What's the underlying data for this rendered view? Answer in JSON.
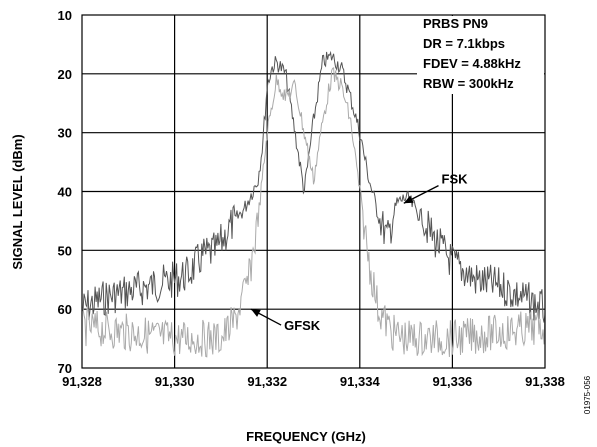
{
  "chart_data": {
    "type": "line",
    "title": "",
    "xlabel": "FREQUENCY (GHz)",
    "ylabel": "SIGNAL LEVEL (dBm)",
    "xlim": [
      91.328,
      91.338
    ],
    "ylim": [
      10,
      70
    ],
    "y_inverted": true,
    "grid": true,
    "x_ticks": [
      91.328,
      91.33,
      91.332,
      91.334,
      91.336,
      91.338
    ],
    "x_tick_labels": [
      "91,328",
      "91,330",
      "91,332",
      "91,334",
      "91,336",
      "91,338"
    ],
    "y_ticks": [
      10,
      20,
      30,
      40,
      50,
      60,
      70
    ],
    "y_tick_labels": [
      "10",
      "20",
      "30",
      "40",
      "50",
      "60",
      "70"
    ],
    "settings_box": [
      "PRBS PN9",
      "DR = 7.1kbps",
      "FDEV = 4.88kHz",
      "RBW = 300kHz"
    ],
    "series": [
      {
        "name": "FSK",
        "color": "#555555",
        "x": [
          91.328,
          91.3285,
          91.329,
          91.3295,
          91.33,
          91.3303,
          91.3306,
          91.3309,
          91.3312,
          91.3315,
          91.3318,
          91.3319,
          91.332,
          91.3321,
          91.3322,
          91.3324,
          91.3326,
          91.3328,
          91.333,
          91.3332,
          91.3334,
          91.3336,
          91.3338,
          91.334,
          91.3342,
          91.3344,
          91.3346,
          91.3348,
          91.335,
          91.3353,
          91.3356,
          91.336,
          91.3365,
          91.337,
          91.3375,
          91.338
        ],
        "values": [
          60,
          58,
          57,
          56,
          55,
          54,
          51,
          50,
          46,
          43,
          38,
          32,
          22,
          19,
          18,
          20,
          30,
          40,
          28,
          18,
          17,
          19,
          24,
          30,
          38,
          44,
          48,
          42,
          41,
          44,
          48,
          52,
          55,
          56,
          58,
          60
        ]
      },
      {
        "name": "GFSK",
        "color": "#aaaaaa",
        "x": [
          91.328,
          91.329,
          91.33,
          91.3305,
          91.331,
          91.3313,
          91.3316,
          91.3318,
          91.332,
          91.3322,
          91.3324,
          91.3326,
          91.3328,
          91.333,
          91.3332,
          91.3334,
          91.3336,
          91.3338,
          91.334,
          91.3342,
          91.3344,
          91.3347,
          91.335,
          91.3355,
          91.336,
          91.337,
          91.338
        ],
        "values": [
          63,
          64,
          65,
          65,
          65,
          62,
          55,
          45,
          30,
          21,
          24,
          22,
          30,
          38,
          28,
          20,
          22,
          28,
          40,
          52,
          60,
          64,
          65,
          65,
          65,
          64,
          63
        ]
      }
    ],
    "annotations": [
      {
        "text": "FSK",
        "target_x": 91.33495,
        "target_y": 42,
        "label_x": 91.3357,
        "label_y": 39
      },
      {
        "text": "GFSK",
        "target_x": 91.33165,
        "target_y": 60,
        "label_x": 91.3323,
        "label_y": 62.7
      }
    ]
  },
  "figure_id": "01975-056"
}
